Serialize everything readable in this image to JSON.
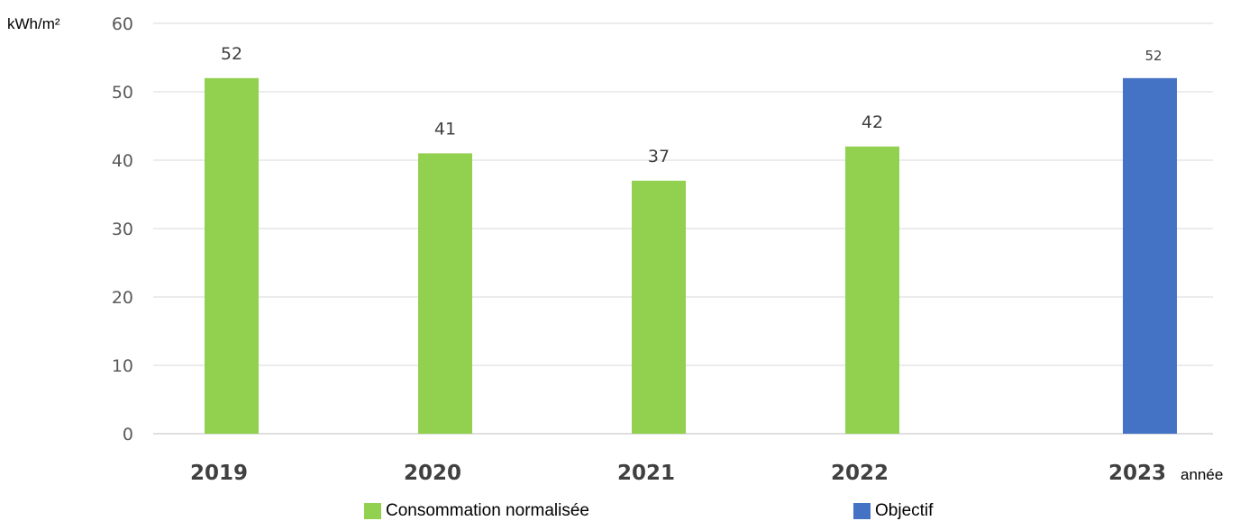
{
  "chart_data": {
    "type": "bar",
    "categories": [
      "2019",
      "2020",
      "2021",
      "2022",
      "2023"
    ],
    "series": [
      {
        "name": "Consommation normalisée",
        "values": [
          52,
          41,
          37,
          42,
          null
        ],
        "color": "#92D050"
      },
      {
        "name": "Objectif",
        "values": [
          null,
          null,
          null,
          null,
          52
        ],
        "color": "#4472C4"
      }
    ],
    "data_labels": [
      "52",
      "41",
      "37",
      "42",
      "52"
    ],
    "ylabel": "kWh/m²",
    "xlabel": "année",
    "ylim": [
      0,
      60
    ],
    "yticks": [
      0,
      10,
      20,
      30,
      40,
      50,
      60
    ],
    "grid": true,
    "legend_position": "bottom"
  }
}
